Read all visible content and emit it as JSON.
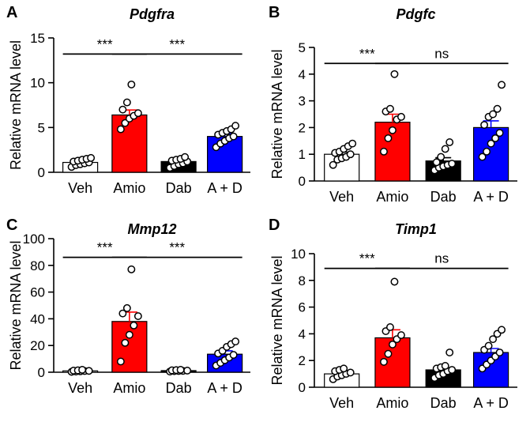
{
  "chart_data": [
    {
      "type": "bar",
      "panel": "A",
      "title": "Pdgfra",
      "ylabel": "Relative mRNA level",
      "xlabel": "",
      "ylim": [
        0,
        15
      ],
      "yticks": [
        0,
        5,
        10,
        15
      ],
      "categories": [
        "Veh",
        "Amio",
        "Dab",
        "A + D"
      ],
      "bar_colors": [
        "#ffffff",
        "#ff0000",
        "#000000",
        "#0000ff"
      ],
      "error_colors": [
        "#000000",
        "#ff0000",
        "#000000",
        "#0000ff"
      ],
      "means": [
        1.1,
        6.4,
        1.2,
        4.0
      ],
      "sems": [
        0.15,
        0.55,
        0.15,
        0.3
      ],
      "points": [
        [
          0.6,
          0.8,
          0.9,
          1.0,
          1.1,
          1.2,
          1.3,
          1.4,
          1.5,
          1.6
        ],
        [
          4.8,
          5.5,
          6.0,
          6.3,
          6.6,
          7.0,
          7.8,
          9.8
        ],
        [
          0.5,
          0.7,
          0.9,
          1.0,
          1.2,
          1.3,
          1.4,
          1.5,
          1.7
        ],
        [
          2.8,
          3.2,
          3.5,
          3.8,
          4.0,
          4.2,
          4.4,
          4.6,
          4.8,
          5.2
        ]
      ],
      "significance": [
        {
          "from": 0,
          "to": 1,
          "label": "***",
          "y": 13.2
        },
        {
          "from": 1,
          "to": 3,
          "label": "***",
          "y": 13.2
        }
      ]
    },
    {
      "type": "bar",
      "panel": "B",
      "title": "Pdgfc",
      "ylabel": "Relative mRNA level",
      "xlabel": "",
      "ylim": [
        0,
        5
      ],
      "yticks": [
        0,
        1,
        2,
        3,
        4,
        5
      ],
      "categories": [
        "Veh",
        "Amio",
        "Dab",
        "A + D"
      ],
      "bar_colors": [
        "#ffffff",
        "#ff0000",
        "#000000",
        "#0000ff"
      ],
      "error_colors": [
        "#000000",
        "#ff0000",
        "#000000",
        "#0000ff"
      ],
      "means": [
        1.0,
        2.2,
        0.75,
        2.0
      ],
      "sems": [
        0.08,
        0.3,
        0.12,
        0.25
      ],
      "points": [
        [
          0.6,
          0.8,
          0.85,
          0.9,
          1.0,
          1.05,
          1.1,
          1.2,
          1.3,
          1.4
        ],
        [
          1.1,
          1.6,
          1.9,
          2.3,
          2.4,
          2.6,
          2.7,
          4.0
        ],
        [
          0.4,
          0.5,
          0.55,
          0.6,
          0.65,
          0.7,
          0.9,
          1.2,
          1.45
        ],
        [
          0.9,
          1.1,
          1.4,
          1.6,
          1.8,
          2.1,
          2.4,
          2.5,
          2.7,
          3.6
        ]
      ],
      "significance": [
        {
          "from": 0,
          "to": 1,
          "label": "***",
          "y": 4.4
        },
        {
          "from": 1,
          "to": 3,
          "label": "ns",
          "y": 4.4
        }
      ]
    },
    {
      "type": "bar",
      "panel": "C",
      "title": "Mmp12",
      "ylabel": "Relative mRNA level",
      "xlabel": "",
      "ylim": [
        0,
        100
      ],
      "yticks": [
        0,
        20,
        40,
        60,
        80,
        100
      ],
      "categories": [
        "Veh",
        "Amio",
        "Dab",
        "A + D"
      ],
      "bar_colors": [
        "#ffffff",
        "#ff0000",
        "#000000",
        "#0000ff"
      ],
      "error_colors": [
        "#000000",
        "#ff0000",
        "#000000",
        "#0000ff"
      ],
      "means": [
        1.0,
        38.0,
        1.2,
        13.5
      ],
      "sems": [
        0.3,
        7.0,
        0.3,
        2.5
      ],
      "points": [
        [
          0.3,
          0.5,
          0.7,
          0.9,
          1.0,
          1.2,
          1.4,
          1.8
        ],
        [
          8.0,
          22.0,
          28.0,
          35.0,
          42.0,
          44.0,
          48.0,
          77.0
        ],
        [
          0.5,
          0.8,
          0.9,
          1.0,
          1.2,
          1.4,
          1.6,
          1.8
        ],
        [
          5.0,
          7.0,
          9.0,
          11.0,
          13.0,
          14.0,
          16.0,
          19.0,
          21.0,
          23.0
        ]
      ],
      "significance": [
        {
          "from": 0,
          "to": 1,
          "label": "***",
          "y": 86.0
        },
        {
          "from": 1,
          "to": 3,
          "label": "***",
          "y": 86.0
        }
      ]
    },
    {
      "type": "bar",
      "panel": "D",
      "title": "Timp1",
      "ylabel": "Relative mRNA level",
      "xlabel": "",
      "ylim": [
        0,
        10
      ],
      "yticks": [
        0,
        2,
        4,
        6,
        8,
        10
      ],
      "categories": [
        "Veh",
        "Amio",
        "Dab",
        "A + D"
      ],
      "bar_colors": [
        "#ffffff",
        "#ff0000",
        "#000000",
        "#0000ff"
      ],
      "error_colors": [
        "#000000",
        "#ff0000",
        "#000000",
        "#0000ff"
      ],
      "means": [
        1.0,
        3.7,
        1.3,
        2.6
      ],
      "sems": [
        0.1,
        0.6,
        0.15,
        0.3
      ],
      "points": [
        [
          0.6,
          0.8,
          0.9,
          1.0,
          1.1,
          1.2,
          1.3,
          1.4
        ],
        [
          1.9,
          2.5,
          3.2,
          3.6,
          3.9,
          4.2,
          4.5,
          7.9
        ],
        [
          0.7,
          0.9,
          1.0,
          1.2,
          1.3,
          1.4,
          1.5,
          1.6,
          2.6
        ],
        [
          1.4,
          1.7,
          2.0,
          2.3,
          2.6,
          2.8,
          3.1,
          3.6,
          4.0,
          4.3
        ]
      ],
      "significance": [
        {
          "from": 0,
          "to": 1,
          "label": "***",
          "y": 8.9
        },
        {
          "from": 1,
          "to": 3,
          "label": "ns",
          "y": 8.9
        }
      ]
    }
  ]
}
